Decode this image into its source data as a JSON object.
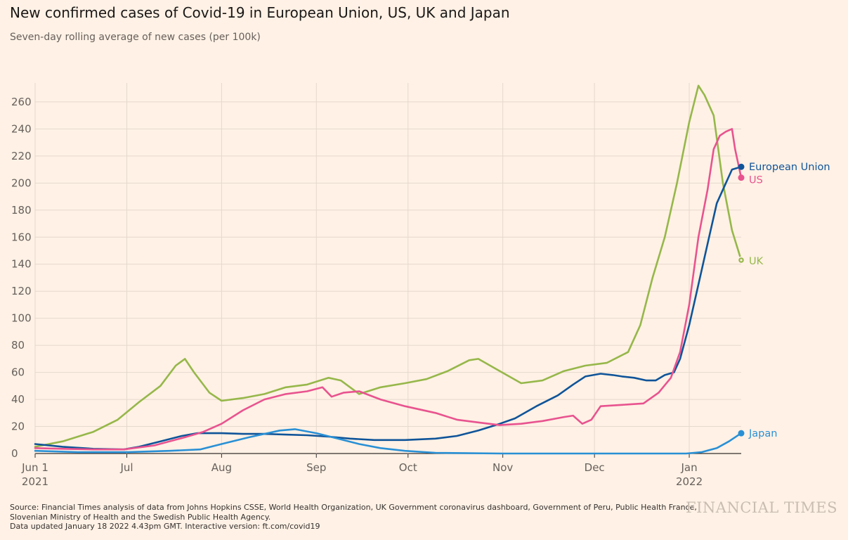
{
  "title": "New confirmed cases of Covid-19 in European Union, US, UK and Japan",
  "subtitle": "Seven-day rolling average of new cases (per 100k)",
  "source_lines": [
    "Source: Financial Times analysis of data from Johns Hopkins CSSE, World Health Organization, UK Government coronavirus dashboard, Government of Peru, Public Health France,",
    "Slovenian Ministry of Health and the Swedish Public Health Agency.",
    "Data updated January 18 2022 4.43pm GMT. Interactive version: ft.com/covid19"
  ],
  "brand": "FINANCIAL TIMES",
  "colors": {
    "background": "#fff1e5",
    "grid": "#e5d8cc",
    "european_union": "#0f5499",
    "us": "#e8538f",
    "uk": "#96b74a",
    "japan": "#2990d5"
  },
  "chart_data": {
    "type": "line",
    "title": "New confirmed cases of Covid-19 in European Union, US, UK and Japan",
    "subtitle": "Seven-day rolling average of new cases (per 100k)",
    "xlabel": "",
    "ylabel": "",
    "ylim": [
      0,
      270
    ],
    "yticks": [
      0,
      20,
      40,
      60,
      80,
      100,
      120,
      140,
      160,
      180,
      200,
      220,
      240,
      260
    ],
    "xlim": [
      "2021-06-01",
      "2022-01-18"
    ],
    "xticks": [
      {
        "date": "2021-06-01",
        "label": "Jun 1",
        "sub": "2021"
      },
      {
        "date": "2021-07-01",
        "label": "Jul",
        "sub": ""
      },
      {
        "date": "2021-08-01",
        "label": "Aug",
        "sub": ""
      },
      {
        "date": "2021-09-01",
        "label": "Sep",
        "sub": ""
      },
      {
        "date": "2021-10-01",
        "label": "Oct",
        "sub": ""
      },
      {
        "date": "2021-11-01",
        "label": "Nov",
        "sub": ""
      },
      {
        "date": "2021-12-01",
        "label": "Dec",
        "sub": ""
      },
      {
        "date": "2022-01-01",
        "label": "Jan",
        "sub": "2022"
      }
    ],
    "grid": true,
    "legend": "direct labels at line ends",
    "series": [
      {
        "name": "European Union",
        "color": "#0f5499",
        "points": [
          [
            "2021-06-01",
            7
          ],
          [
            "2021-06-10",
            5
          ],
          [
            "2021-06-20",
            3.5
          ],
          [
            "2021-06-30",
            3
          ],
          [
            "2021-07-05",
            5
          ],
          [
            "2021-07-12",
            9
          ],
          [
            "2021-07-19",
            13
          ],
          [
            "2021-07-24",
            15
          ],
          [
            "2021-08-01",
            15
          ],
          [
            "2021-08-08",
            14.5
          ],
          [
            "2021-08-15",
            14.5
          ],
          [
            "2021-08-22",
            14
          ],
          [
            "2021-08-29",
            13.5
          ],
          [
            "2021-09-05",
            12.5
          ],
          [
            "2021-09-12",
            11
          ],
          [
            "2021-09-20",
            10
          ],
          [
            "2021-09-30",
            10
          ],
          [
            "2021-10-10",
            11
          ],
          [
            "2021-10-17",
            13
          ],
          [
            "2021-10-24",
            17
          ],
          [
            "2021-10-31",
            22
          ],
          [
            "2021-11-05",
            26
          ],
          [
            "2021-11-12",
            35
          ],
          [
            "2021-11-19",
            43
          ],
          [
            "2021-11-24",
            51
          ],
          [
            "2021-11-28",
            57
          ],
          [
            "2021-12-03",
            59
          ],
          [
            "2021-12-07",
            58
          ],
          [
            "2021-12-10",
            57
          ],
          [
            "2021-12-14",
            56
          ],
          [
            "2021-12-18",
            54
          ],
          [
            "2021-12-21",
            54
          ],
          [
            "2021-12-24",
            58
          ],
          [
            "2021-12-27",
            60
          ],
          [
            "2021-12-29",
            70
          ],
          [
            "2022-01-01",
            95
          ],
          [
            "2022-01-04",
            125
          ],
          [
            "2022-01-07",
            155
          ],
          [
            "2022-01-10",
            185
          ],
          [
            "2022-01-13",
            200
          ],
          [
            "2022-01-15",
            210
          ],
          [
            "2022-01-18",
            212
          ]
        ]
      },
      {
        "name": "US",
        "color": "#e8538f",
        "points": [
          [
            "2021-06-01",
            4
          ],
          [
            "2021-06-10",
            3.5
          ],
          [
            "2021-06-20",
            3
          ],
          [
            "2021-06-30",
            3
          ],
          [
            "2021-07-10",
            6
          ],
          [
            "2021-07-20",
            12
          ],
          [
            "2021-07-26",
            16
          ],
          [
            "2021-08-01",
            22
          ],
          [
            "2021-08-08",
            32
          ],
          [
            "2021-08-15",
            40
          ],
          [
            "2021-08-22",
            44
          ],
          [
            "2021-08-29",
            46
          ],
          [
            "2021-09-03",
            49
          ],
          [
            "2021-09-06",
            42
          ],
          [
            "2021-09-10",
            45
          ],
          [
            "2021-09-15",
            46
          ],
          [
            "2021-09-22",
            40
          ],
          [
            "2021-09-30",
            35
          ],
          [
            "2021-10-10",
            30
          ],
          [
            "2021-10-17",
            25
          ],
          [
            "2021-10-24",
            23
          ],
          [
            "2021-10-31",
            21
          ],
          [
            "2021-11-07",
            22
          ],
          [
            "2021-11-14",
            24
          ],
          [
            "2021-11-21",
            27
          ],
          [
            "2021-11-24",
            28
          ],
          [
            "2021-11-27",
            22
          ],
          [
            "2021-11-30",
            25
          ],
          [
            "2021-12-03",
            35
          ],
          [
            "2021-12-10",
            36
          ],
          [
            "2021-12-17",
            37
          ],
          [
            "2021-12-22",
            45
          ],
          [
            "2021-12-26",
            56
          ],
          [
            "2021-12-29",
            75
          ],
          [
            "2022-01-01",
            110
          ],
          [
            "2022-01-04",
            160
          ],
          [
            "2022-01-07",
            195
          ],
          [
            "2022-01-09",
            225
          ],
          [
            "2022-01-11",
            235
          ],
          [
            "2022-01-13",
            238
          ],
          [
            "2022-01-15",
            240
          ],
          [
            "2022-01-16",
            225
          ],
          [
            "2022-01-18",
            204
          ]
        ]
      },
      {
        "name": "UK",
        "color": "#96b74a",
        "points": [
          [
            "2021-06-01",
            5
          ],
          [
            "2021-06-10",
            9
          ],
          [
            "2021-06-20",
            16
          ],
          [
            "2021-06-28",
            25
          ],
          [
            "2021-07-05",
            38
          ],
          [
            "2021-07-12",
            50
          ],
          [
            "2021-07-17",
            65
          ],
          [
            "2021-07-20",
            70
          ],
          [
            "2021-07-23",
            60
          ],
          [
            "2021-07-28",
            45
          ],
          [
            "2021-08-01",
            39
          ],
          [
            "2021-08-08",
            41
          ],
          [
            "2021-08-15",
            44
          ],
          [
            "2021-08-22",
            49
          ],
          [
            "2021-08-29",
            51
          ],
          [
            "2021-09-05",
            56
          ],
          [
            "2021-09-09",
            54
          ],
          [
            "2021-09-15",
            44
          ],
          [
            "2021-09-22",
            49
          ],
          [
            "2021-09-30",
            52
          ],
          [
            "2021-10-07",
            55
          ],
          [
            "2021-10-14",
            61
          ],
          [
            "2021-10-21",
            69
          ],
          [
            "2021-10-24",
            70
          ],
          [
            "2021-10-31",
            61
          ],
          [
            "2021-11-07",
            52
          ],
          [
            "2021-11-14",
            54
          ],
          [
            "2021-11-21",
            61
          ],
          [
            "2021-11-28",
            65
          ],
          [
            "2021-12-05",
            67
          ],
          [
            "2021-12-12",
            75
          ],
          [
            "2021-12-16",
            95
          ],
          [
            "2021-12-20",
            130
          ],
          [
            "2021-12-24",
            160
          ],
          [
            "2021-12-28",
            200
          ],
          [
            "2022-01-01",
            245
          ],
          [
            "2022-01-04",
            272
          ],
          [
            "2022-01-06",
            265
          ],
          [
            "2022-01-09",
            250
          ],
          [
            "2022-01-12",
            200
          ],
          [
            "2022-01-15",
            165
          ],
          [
            "2022-01-18",
            143
          ]
        ]
      },
      {
        "name": "Japan",
        "color": "#2990d5",
        "points": [
          [
            "2021-06-01",
            2
          ],
          [
            "2021-06-15",
            1
          ],
          [
            "2021-07-01",
            1
          ],
          [
            "2021-07-15",
            2
          ],
          [
            "2021-07-25",
            3
          ],
          [
            "2021-08-01",
            7
          ],
          [
            "2021-08-10",
            12
          ],
          [
            "2021-08-20",
            17
          ],
          [
            "2021-08-25",
            18
          ],
          [
            "2021-09-01",
            15
          ],
          [
            "2021-09-08",
            11
          ],
          [
            "2021-09-15",
            7
          ],
          [
            "2021-09-22",
            4
          ],
          [
            "2021-09-30",
            2
          ],
          [
            "2021-10-10",
            0.5
          ],
          [
            "2021-11-01",
            0
          ],
          [
            "2021-12-01",
            0
          ],
          [
            "2021-12-31",
            0
          ],
          [
            "2022-01-05",
            1
          ],
          [
            "2022-01-10",
            4
          ],
          [
            "2022-01-14",
            9
          ],
          [
            "2022-01-18",
            15
          ]
        ]
      }
    ],
    "end_labels": [
      "European Union",
      "US",
      "UK",
      "Japan"
    ]
  }
}
